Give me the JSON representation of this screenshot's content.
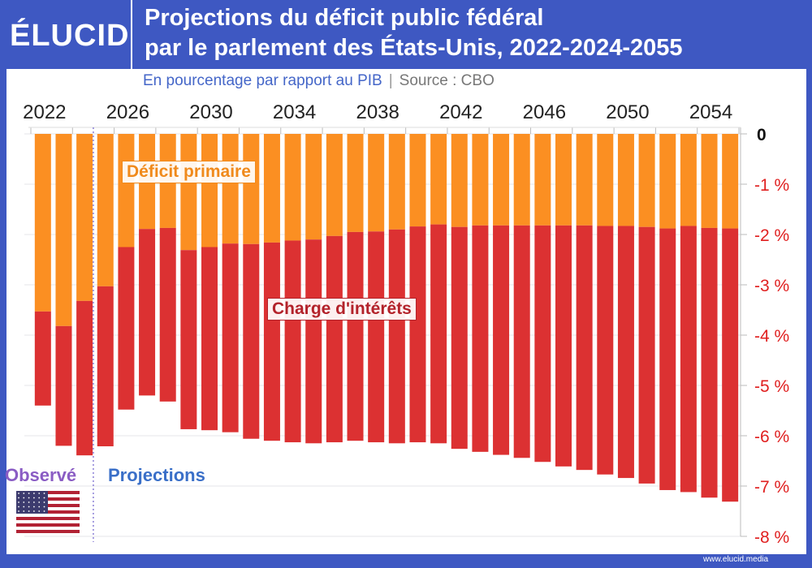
{
  "header": {
    "logo": "ÉLUCID",
    "title_line1": "Projections du déficit public fédéral",
    "title_line2": "par le parlement des États-Unis, 2022-2024-2055",
    "subtitle": "En pourcentage par rapport au PIB",
    "source": "Source : CBO"
  },
  "annotations": {
    "observed": "Observé",
    "projections": "Projections"
  },
  "footer": {
    "url": "www.elucid.media"
  },
  "colors": {
    "primary_deficit": "#fb8f22",
    "interest_charge": "#dc3132",
    "frame": "#3e58c2"
  },
  "chart_data": {
    "type": "bar",
    "stacked": true,
    "title": "Projections du déficit public fédéral par le parlement des États-Unis, 2022-2024-2055",
    "ylabel": "",
    "xlabel": "",
    "ylim": [
      -8,
      0
    ],
    "yticks": [
      "0",
      "-1 %",
      "-2 %",
      "-3 %",
      "-4 %",
      "-5 %",
      "-6 %",
      "-7 %",
      "-8 %"
    ],
    "xticks": [
      "2022",
      "2026",
      "2030",
      "2034",
      "2038",
      "2042",
      "2046",
      "2050",
      "2054"
    ],
    "grid": true,
    "observed_until": 2024,
    "categories": [
      2022,
      2023,
      2024,
      2025,
      2026,
      2027,
      2028,
      2029,
      2030,
      2031,
      2032,
      2033,
      2034,
      2035,
      2036,
      2037,
      2038,
      2039,
      2040,
      2041,
      2042,
      2043,
      2044,
      2045,
      2046,
      2047,
      2048,
      2049,
      2050,
      2051,
      2052,
      2053,
      2054,
      2055
    ],
    "series": [
      {
        "name": "Déficit primaire",
        "values": [
          -3.53,
          -3.82,
          -3.32,
          -3.03,
          -2.25,
          -1.89,
          -1.87,
          -2.31,
          -2.25,
          -2.18,
          -2.19,
          -2.16,
          -2.12,
          -2.1,
          -2.03,
          -1.95,
          -1.94,
          -1.9,
          -1.84,
          -1.8,
          -1.85,
          -1.82,
          -1.82,
          -1.82,
          -1.82,
          -1.82,
          -1.82,
          -1.83,
          -1.83,
          -1.85,
          -1.88,
          -1.83,
          -1.87,
          -1.88
        ]
      },
      {
        "name": "Charge d'intérêts",
        "values": [
          -1.87,
          -2.38,
          -3.07,
          -3.18,
          -3.23,
          -3.31,
          -3.45,
          -3.56,
          -3.64,
          -3.75,
          -3.87,
          -3.94,
          -4.01,
          -4.05,
          -4.1,
          -4.15,
          -4.19,
          -4.25,
          -4.29,
          -4.35,
          -4.41,
          -4.5,
          -4.56,
          -4.62,
          -4.7,
          -4.79,
          -4.86,
          -4.94,
          -5.01,
          -5.1,
          -5.2,
          -5.29,
          -5.36,
          -5.43
        ]
      }
    ]
  }
}
